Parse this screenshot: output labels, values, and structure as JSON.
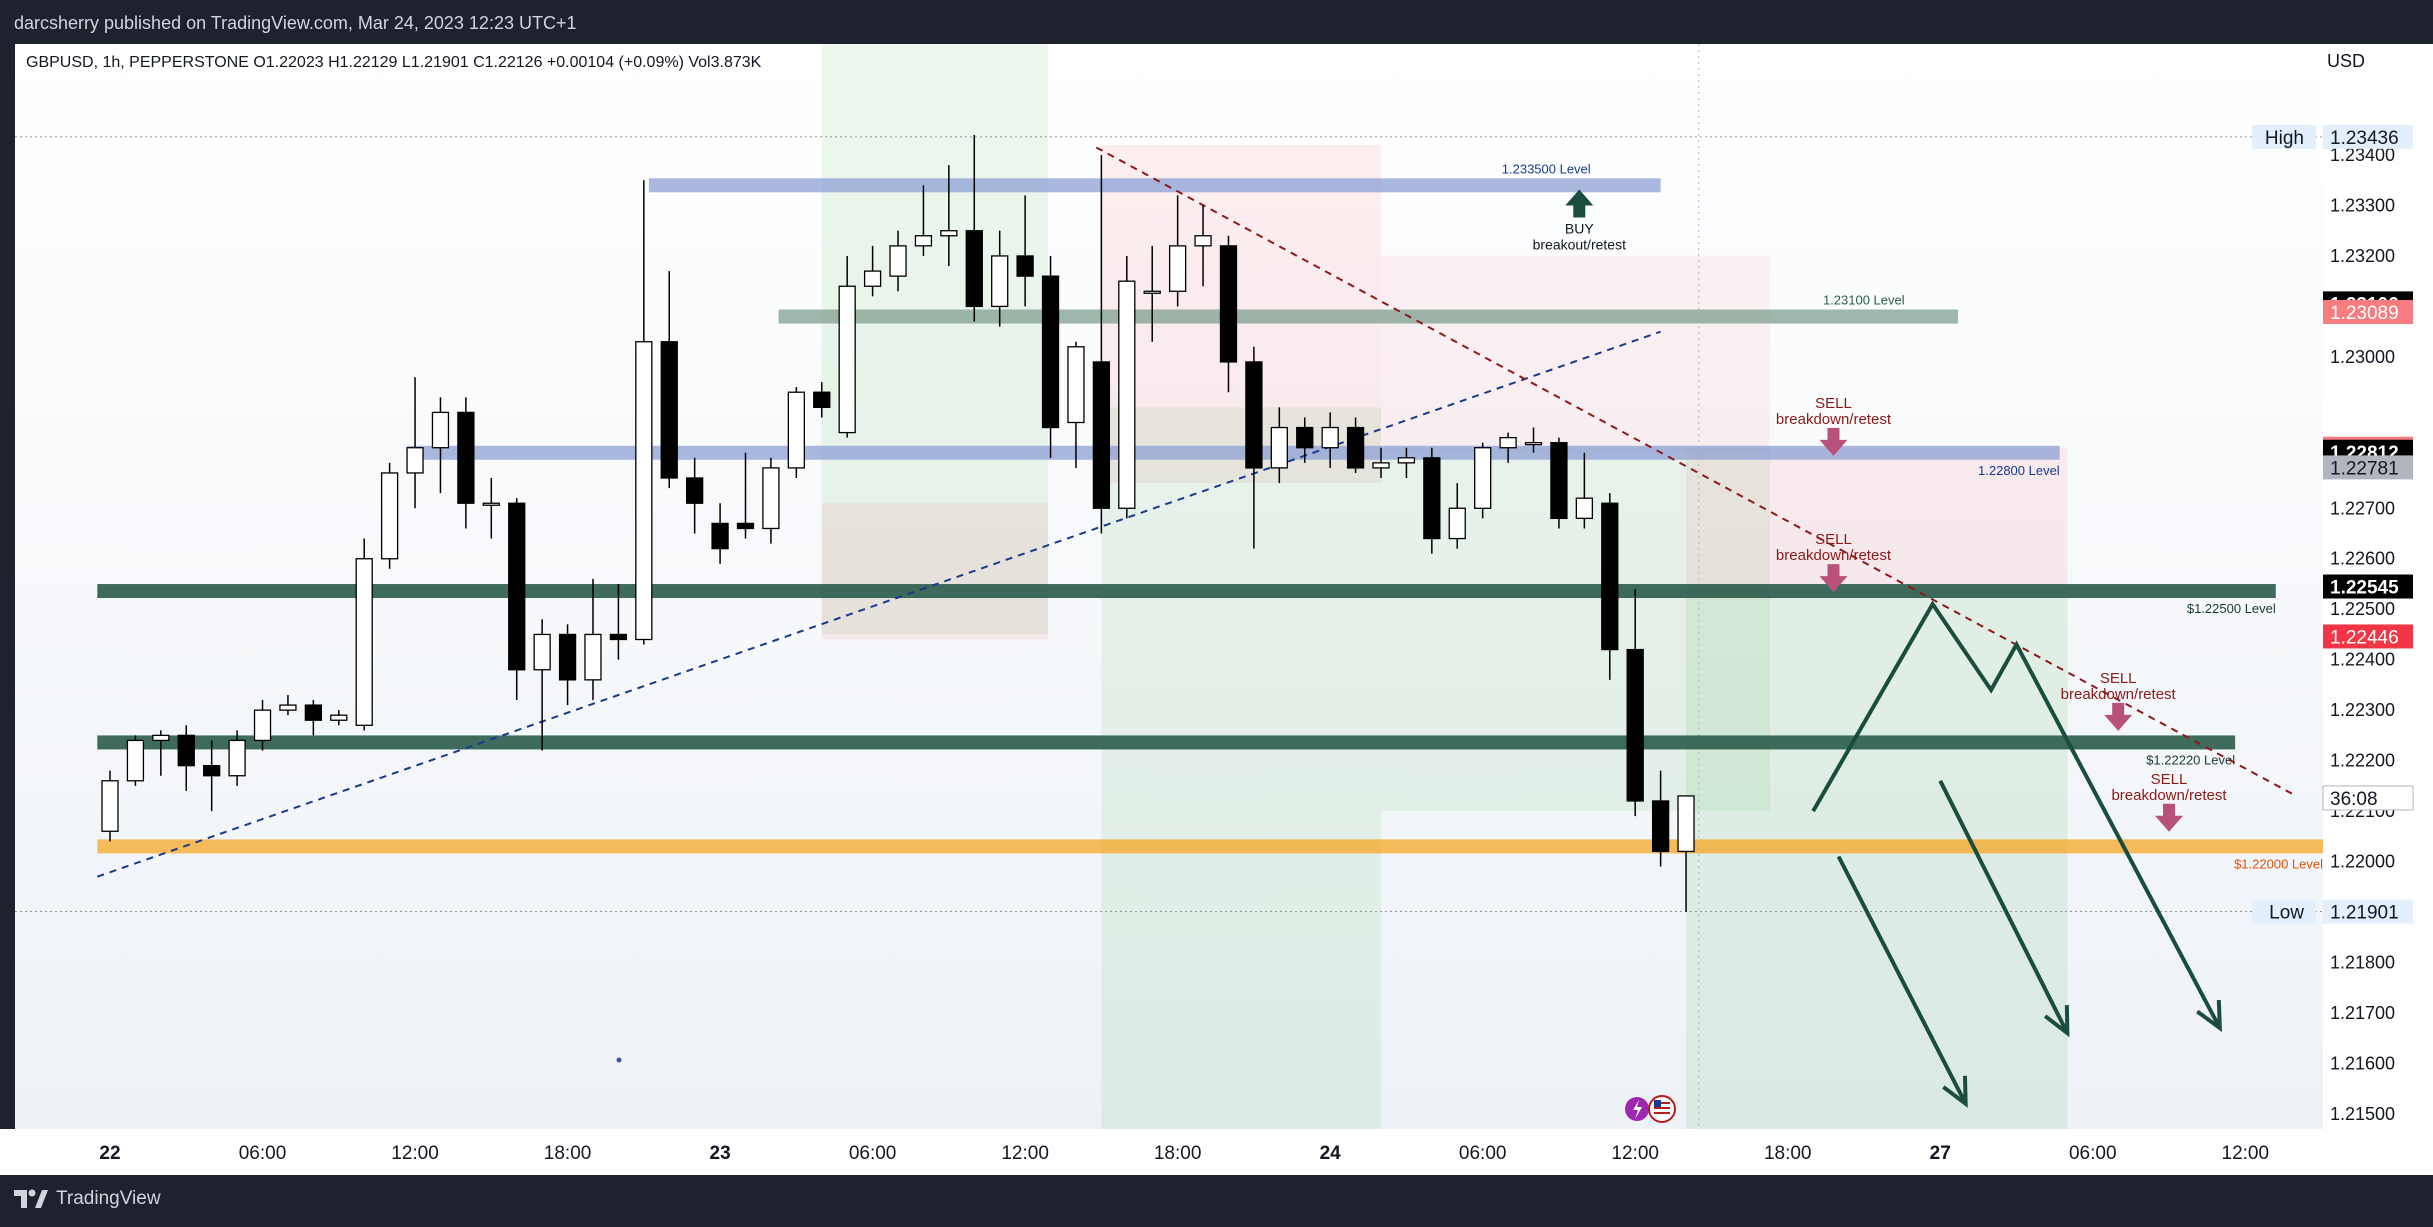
{
  "header": {
    "publish_text": "darcsherry published on TradingView.com, Mar 24, 2023 12:23 UTC+1"
  },
  "footer": {
    "brand": "TradingView",
    "logo_icon": "tradingview-logo-icon"
  },
  "symbol_line": "GBPUSD, 1h, PEPPERSTONE  O1.22023  H1.22129  L1.21901  C1.22126  +0.00104 (+0.09%)  Vol3.873K",
  "colors": {
    "background": "#ffffff",
    "chrome": "#1e222d",
    "bull_candle": "#ffffff",
    "bear_candle": "#000000",
    "blue_zone": "#8ea0d6",
    "green_zone": "#2e5e4e",
    "orange_zone": "#f5a623",
    "sell_arrow": "#b8527a",
    "buy_arrow": "#1b4d3e",
    "dark_green_projection": "#1b4d3e",
    "label_red": "#f23645",
    "label_pink": "#f77c80"
  },
  "chart_data": {
    "type": "candlestick",
    "symbol": "GBPUSD",
    "timeframe": "1h",
    "exchange": "PEPPERSTONE",
    "ohlc_current": {
      "open": "1.22023",
      "high": "1.22129",
      "low": "1.21901",
      "close": "1.22126",
      "change": "+0.00104 (+0.09%)",
      "volume": "3.873K"
    },
    "y_axis": {
      "currency": "USD",
      "ylim": [
        1.2147,
        1.2362
      ],
      "ticks": [
        "1.23400",
        "1.23300",
        "1.23200",
        "1.23000",
        "1.22700",
        "1.22600",
        "1.22500",
        "1.22400",
        "1.22300",
        "1.22200",
        "1.22100",
        "1.22000",
        "1.21800",
        "1.21700",
        "1.21600",
        "1.21500"
      ]
    },
    "x_axis": {
      "ticks": [
        {
          "label": "22",
          "i": 0
        },
        {
          "label": "06:00",
          "i": 6
        },
        {
          "label": "12:00",
          "i": 12
        },
        {
          "label": "18:00",
          "i": 18
        },
        {
          "label": "23",
          "i": 24
        },
        {
          "label": "06:00",
          "i": 30
        },
        {
          "label": "12:00",
          "i": 36
        },
        {
          "label": "18:00",
          "i": 42
        },
        {
          "label": "24",
          "i": 48
        },
        {
          "label": "06:00",
          "i": 54
        },
        {
          "label": "12:00",
          "i": 60
        },
        {
          "label": "18:00",
          "i": 66
        },
        {
          "label": "27",
          "i": 72
        },
        {
          "label": "06:00",
          "i": 78
        },
        {
          "label": "12:00",
          "i": 84
        }
      ]
    },
    "price_labels": [
      {
        "text": "High",
        "value": "1.23436",
        "price": 1.23436,
        "style": "high"
      },
      {
        "value": "1.23106",
        "price": 1.23106,
        "style": "black"
      },
      {
        "value": "1.23089",
        "price": 1.23089,
        "style": "pink"
      },
      {
        "value": "1.22818",
        "price": 1.22818,
        "style": "pink"
      },
      {
        "value": "1.22812",
        "price": 1.22812,
        "style": "black"
      },
      {
        "value": "1.22781",
        "price": 1.22781,
        "style": "grey"
      },
      {
        "value": "1.22545",
        "price": 1.22545,
        "style": "black"
      },
      {
        "value": "1.22446",
        "price": 1.22446,
        "style": "red"
      },
      {
        "value": "36:08",
        "price": 1.22126,
        "style": "countdown"
      },
      {
        "text": "Low",
        "value": "1.21901",
        "price": 1.21901,
        "style": "low"
      }
    ],
    "candles": [
      {
        "o": 1.2206,
        "h": 1.2218,
        "l": 1.2204,
        "c": 1.2216
      },
      {
        "o": 1.2216,
        "h": 1.2225,
        "l": 1.2215,
        "c": 1.2224
      },
      {
        "o": 1.2224,
        "h": 1.2226,
        "l": 1.2217,
        "c": 1.2225
      },
      {
        "o": 1.2225,
        "h": 1.2227,
        "l": 1.2214,
        "c": 1.2219
      },
      {
        "o": 1.2219,
        "h": 1.2224,
        "l": 1.221,
        "c": 1.2217
      },
      {
        "o": 1.2217,
        "h": 1.2226,
        "l": 1.2215,
        "c": 1.2224
      },
      {
        "o": 1.2224,
        "h": 1.2232,
        "l": 1.2222,
        "c": 1.223
      },
      {
        "o": 1.223,
        "h": 1.2233,
        "l": 1.2229,
        "c": 1.2231
      },
      {
        "o": 1.2231,
        "h": 1.2232,
        "l": 1.2225,
        "c": 1.2228
      },
      {
        "o": 1.2228,
        "h": 1.223,
        "l": 1.2227,
        "c": 1.2229
      },
      {
        "o": 1.2227,
        "h": 1.2264,
        "l": 1.2226,
        "c": 1.226
      },
      {
        "o": 1.226,
        "h": 1.2279,
        "l": 1.2258,
        "c": 1.2277
      },
      {
        "o": 1.2277,
        "h": 1.2296,
        "l": 1.227,
        "c": 1.2282
      },
      {
        "o": 1.2282,
        "h": 1.2292,
        "l": 1.2273,
        "c": 1.2289
      },
      {
        "o": 1.2289,
        "h": 1.2292,
        "l": 1.2266,
        "c": 1.2271
      },
      {
        "o": 1.2271,
        "h": 1.2276,
        "l": 1.2264,
        "c": 1.2271
      },
      {
        "o": 1.2271,
        "h": 1.2272,
        "l": 1.2232,
        "c": 1.2238
      },
      {
        "o": 1.2238,
        "h": 1.2248,
        "l": 1.2222,
        "c": 1.2245
      },
      {
        "o": 1.2245,
        "h": 1.2247,
        "l": 1.2231,
        "c": 1.2236
      },
      {
        "o": 1.2236,
        "h": 1.2256,
        "l": 1.2232,
        "c": 1.2245
      },
      {
        "o": 1.2245,
        "h": 1.2255,
        "l": 1.224,
        "c": 1.2244
      },
      {
        "o": 1.2244,
        "h": 1.2335,
        "l": 1.2243,
        "c": 1.2303
      },
      {
        "o": 1.2303,
        "h": 1.2317,
        "l": 1.2274,
        "c": 1.2276
      },
      {
        "o": 1.2276,
        "h": 1.228,
        "l": 1.2265,
        "c": 1.2271
      },
      {
        "o": 1.2267,
        "h": 1.2271,
        "l": 1.2259,
        "c": 1.2262
      },
      {
        "o": 1.2267,
        "h": 1.2281,
        "l": 1.2264,
        "c": 1.2266
      },
      {
        "o": 1.2266,
        "h": 1.228,
        "l": 1.2263,
        "c": 1.2278
      },
      {
        "o": 1.2278,
        "h": 1.2294,
        "l": 1.2276,
        "c": 1.2293
      },
      {
        "o": 1.2293,
        "h": 1.2295,
        "l": 1.2288,
        "c": 1.229
      },
      {
        "o": 1.2285,
        "h": 1.232,
        "l": 1.2284,
        "c": 1.2314
      },
      {
        "o": 1.2314,
        "h": 1.2322,
        "l": 1.2312,
        "c": 1.2317
      },
      {
        "o": 1.2316,
        "h": 1.2325,
        "l": 1.2313,
        "c": 1.2322
      },
      {
        "o": 1.2322,
        "h": 1.2334,
        "l": 1.232,
        "c": 1.2324
      },
      {
        "o": 1.2324,
        "h": 1.2338,
        "l": 1.2318,
        "c": 1.2325
      },
      {
        "o": 1.2325,
        "h": 1.2344,
        "l": 1.2307,
        "c": 1.231
      },
      {
        "o": 1.231,
        "h": 1.2325,
        "l": 1.2306,
        "c": 1.232
      },
      {
        "o": 1.232,
        "h": 1.2332,
        "l": 1.231,
        "c": 1.2316
      },
      {
        "o": 1.2316,
        "h": 1.232,
        "l": 1.228,
        "c": 1.2286
      },
      {
        "o": 1.2287,
        "h": 1.2303,
        "l": 1.2278,
        "c": 1.2302
      },
      {
        "o": 1.2299,
        "h": 1.234,
        "l": 1.2265,
        "c": 1.227
      },
      {
        "o": 1.227,
        "h": 1.232,
        "l": 1.2268,
        "c": 1.2315
      },
      {
        "o": 1.2313,
        "h": 1.2322,
        "l": 1.2303,
        "c": 1.2313
      },
      {
        "o": 1.2313,
        "h": 1.2332,
        "l": 1.231,
        "c": 1.2322
      },
      {
        "o": 1.2322,
        "h": 1.233,
        "l": 1.2314,
        "c": 1.2324
      },
      {
        "o": 1.2322,
        "h": 1.2324,
        "l": 1.2293,
        "c": 1.2299
      },
      {
        "o": 1.2299,
        "h": 1.2302,
        "l": 1.2262,
        "c": 1.2278
      },
      {
        "o": 1.2278,
        "h": 1.229,
        "l": 1.2275,
        "c": 1.2286
      },
      {
        "o": 1.2286,
        "h": 1.2288,
        "l": 1.2279,
        "c": 1.2282
      },
      {
        "o": 1.2282,
        "h": 1.2289,
        "l": 1.2278,
        "c": 1.2286
      },
      {
        "o": 1.2286,
        "h": 1.2288,
        "l": 1.2277,
        "c": 1.2278
      },
      {
        "o": 1.2278,
        "h": 1.2282,
        "l": 1.2276,
        "c": 1.2279
      },
      {
        "o": 1.2279,
        "h": 1.2282,
        "l": 1.2276,
        "c": 1.228
      },
      {
        "o": 1.228,
        "h": 1.2282,
        "l": 1.2261,
        "c": 1.2264
      },
      {
        "o": 1.2264,
        "h": 1.2275,
        "l": 1.2262,
        "c": 1.227
      },
      {
        "o": 1.227,
        "h": 1.2283,
        "l": 1.2268,
        "c": 1.2282
      },
      {
        "o": 1.2282,
        "h": 1.2285,
        "l": 1.2279,
        "c": 1.2284
      },
      {
        "o": 1.2283,
        "h": 1.2286,
        "l": 1.2281,
        "c": 1.2283
      },
      {
        "o": 1.2283,
        "h": 1.2284,
        "l": 1.2266,
        "c": 1.2268
      },
      {
        "o": 1.2268,
        "h": 1.2281,
        "l": 1.2266,
        "c": 1.2272
      },
      {
        "o": 1.2271,
        "h": 1.2273,
        "l": 1.2236,
        "c": 1.2242
      },
      {
        "o": 1.2242,
        "h": 1.2254,
        "l": 1.2209,
        "c": 1.2212
      },
      {
        "o": 1.2212,
        "h": 1.2218,
        "l": 1.2199,
        "c": 1.2202
      },
      {
        "o": 1.2202,
        "h": 1.2213,
        "l": 1.219,
        "c": 1.2213
      }
    ],
    "zones": [
      {
        "type": "rect",
        "color": "blue_zone",
        "i1": 21.2,
        "i2": 61,
        "p_top": 1.2335,
        "p_bot": 1.2333,
        "label": "1.233500 Level",
        "label_color": "#1a3a8f",
        "label_i": 56.5,
        "label_anchor": "middle",
        "label_above": true
      },
      {
        "type": "rect",
        "color": "green_zone_light",
        "i1": 26.3,
        "i2": 72.7,
        "p_top": 1.2309,
        "p_bot": 1.2307,
        "label": "1.23100 Level",
        "label_color": "#2e5e4e",
        "label_i": 70.6,
        "label_anchor": "end",
        "label_above": true
      },
      {
        "type": "rect",
        "color": "blue_zone",
        "i1": 11.7,
        "i2": 76.7,
        "p_top": 1.2282,
        "p_bot": 1.228,
        "label": "1.22800 Level",
        "label_color": "#1a3a8f",
        "label_i": 76.7,
        "label_anchor": "end",
        "label_above": false
      },
      {
        "type": "rect",
        "color": "green_zone",
        "i1": -0.5,
        "i2": 85.2,
        "p_top": 1.22545,
        "p_bot": 1.22527,
        "label": "$1.22500 Level",
        "label_color": "#1b3b2e",
        "label_i": 85.2,
        "label_anchor": "end",
        "label_above": false
      },
      {
        "type": "rect",
        "color": "green_zone",
        "i1": -0.5,
        "i2": 83.6,
        "p_top": 1.22245,
        "p_bot": 1.22227,
        "label": "$1.22220 Level",
        "label_color": "#1b3b2e",
        "label_i": 83.6,
        "label_anchor": "end",
        "label_above": false
      },
      {
        "type": "rect",
        "color": "orange_zone",
        "i1": -0.5,
        "i2": 88.2,
        "p_top": 1.2204,
        "p_bot": 1.2202,
        "label": "$1.22000 Level",
        "label_color": "#e65100",
        "label_i": 88.2,
        "label_anchor": "end",
        "label_above": false
      }
    ],
    "annotations": [
      {
        "kind": "buy",
        "text1": "BUY",
        "text2": "breakout/retest",
        "i": 57.8,
        "price": 1.233
      },
      {
        "kind": "sell",
        "text1": "SELL",
        "text2": "breakdown/retest",
        "i": 67.8,
        "price": 1.228
      },
      {
        "kind": "sell",
        "text1": "SELL",
        "text2": "breakdown/retest",
        "i": 67.8,
        "price": 1.2253
      },
      {
        "kind": "sell",
        "text1": "SELL",
        "text2": "breakdown/retest",
        "i": 79.0,
        "price": 1.22255
      },
      {
        "kind": "sell",
        "text1": "SELL",
        "text2": "breakdown/retest",
        "i": 81.0,
        "price": 1.22055
      }
    ],
    "trendlines": [
      {
        "style": "dashed",
        "color": "#1a3a8f",
        "i1": -0.5,
        "p1": 1.2197,
        "i2": 61,
        "p2": 1.2305
      },
      {
        "style": "dashed",
        "color": "#8b1a1a",
        "i1": 38.8,
        "p1": 1.23415,
        "i2": 86,
        "p2": 1.2213
      }
    ],
    "projection_path": [
      {
        "i": 67.0,
        "p": 1.221
      },
      {
        "i": 71.7,
        "p": 1.2251
      },
      {
        "i": 74.0,
        "p": 1.2234
      },
      {
        "i": 75.0,
        "p": 1.2243
      },
      {
        "i": 83.0,
        "p": 1.2167
      }
    ],
    "projection_arrows": [
      {
        "i1": 68.0,
        "p1": 1.2201,
        "i2": 73.0,
        "p2": 1.2152
      },
      {
        "i1": 72.0,
        "p1": 1.2216,
        "i2": 77.0,
        "p2": 1.2166
      }
    ],
    "shaded_areas": [
      {
        "color": "rgba(76,175,80,0.10)",
        "i1": 28,
        "i2": 36.9,
        "p_top": 1.2362,
        "p_bot": 1.2245
      },
      {
        "color": "rgba(242,54,69,0.08)",
        "i1": 28,
        "i2": 36.9,
        "p_top": 1.2271,
        "p_bot": 1.2244
      },
      {
        "color": "rgba(242,54,69,0.08)",
        "i1": 39,
        "i2": 50,
        "p_top": 1.2342,
        "p_bot": 1.2275
      },
      {
        "color": "rgba(76,175,80,0.10)",
        "i1": 39,
        "i2": 50,
        "p_top": 1.229,
        "p_bot": 1.2147
      },
      {
        "color": "rgba(242,54,69,0.06)",
        "i1": 50,
        "i2": 65.3,
        "p_top": 1.232,
        "p_bot": 1.2281
      },
      {
        "color": "rgba(76,175,80,0.10)",
        "i1": 50,
        "i2": 65.3,
        "p_top": 1.2282,
        "p_bot": 1.221
      },
      {
        "color": "rgba(242,54,69,0.08)",
        "i1": 62,
        "i2": 77,
        "p_top": 1.2282,
        "p_bot": 1.2253
      },
      {
        "color": "rgba(76,175,80,0.12)",
        "i1": 62,
        "i2": 77,
        "p_top": 1.2254,
        "p_bot": 1.2147
      }
    ]
  }
}
